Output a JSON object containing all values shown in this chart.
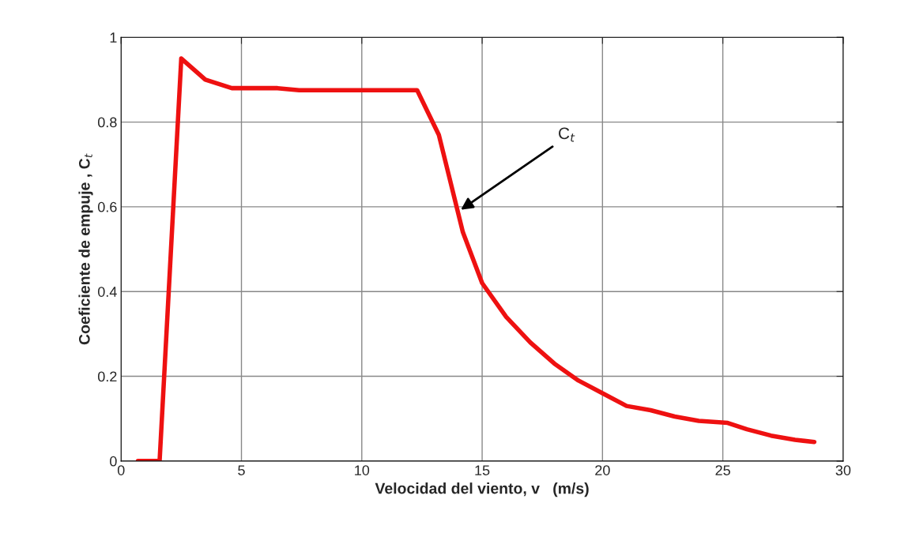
{
  "chart_data": {
    "type": "line",
    "xlabel": "Velocidad del viento, v   (m/s)",
    "ylabel": "Coeficiente de empuje , C$_{t}$",
    "series": [
      {
        "color": "#ee1111",
        "x": [
          0.7,
          1.6,
          2.5,
          3.5,
          4.6,
          6.5,
          7.4,
          12.3,
          13.2,
          14.2,
          15.0,
          16.0,
          17.0,
          18.0,
          19.0,
          20.0,
          21.0,
          22.0,
          23.0,
          24.0,
          25.2,
          26.0,
          27.0,
          28.0,
          28.8
        ],
        "values": [
          0,
          0,
          0.95,
          0.9,
          0.88,
          0.88,
          0.875,
          0.875,
          0.77,
          0.54,
          0.42,
          0.34,
          0.28,
          0.23,
          0.19,
          0.16,
          0.13,
          0.12,
          0.105,
          0.095,
          0.09,
          0.075,
          0.06,
          0.05,
          0.045
        ]
      }
    ],
    "annotations": [
      "C$_{t}$"
    ],
    "xlim": [
      0,
      30
    ],
    "xticks": [
      0,
      5,
      10,
      15,
      20,
      25,
      30
    ],
    "ylim": [
      0,
      1
    ],
    "yticks": [
      0,
      0.2,
      0.4,
      0.6,
      0.8,
      1
    ],
    "grid": true,
    "line_style": "solid",
    "marker": "none"
  }
}
